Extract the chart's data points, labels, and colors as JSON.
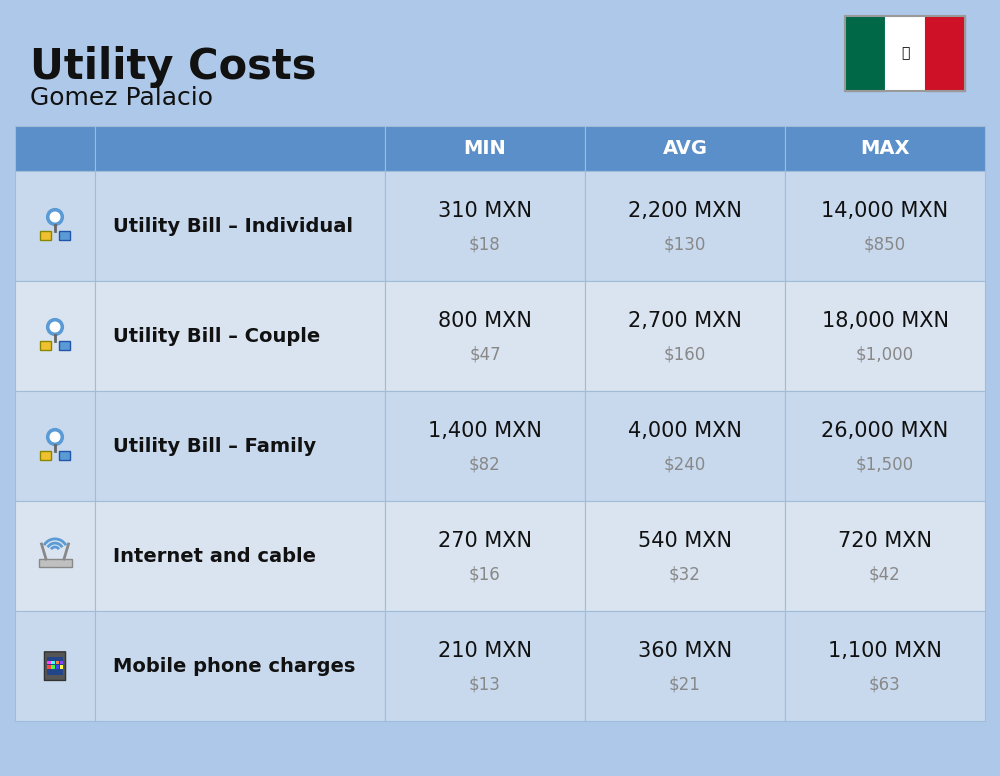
{
  "title": "Utility Costs",
  "subtitle": "Gomez Palacio",
  "background_color": "#adc8e8",
  "header_bg_color": "#5b8fc9",
  "row_bg_color_1": "#c8d9ee",
  "row_bg_color_2": "#dae4f0",
  "header_text_color": "#ffffff",
  "label_text_color": "#111111",
  "value_text_color": "#111111",
  "usd_text_color": "#888888",
  "grid_line_color": "#a0bcd8",
  "col_headers": [
    "MIN",
    "AVG",
    "MAX"
  ],
  "rows": [
    {
      "label": "Utility Bill – Individual",
      "min_mxn": "310 MXN",
      "min_usd": "$18",
      "avg_mxn": "2,200 MXN",
      "avg_usd": "$130",
      "max_mxn": "14,000 MXN",
      "max_usd": "$850"
    },
    {
      "label": "Utility Bill – Couple",
      "min_mxn": "800 MXN",
      "min_usd": "$47",
      "avg_mxn": "2,700 MXN",
      "avg_usd": "$160",
      "max_mxn": "18,000 MXN",
      "max_usd": "$1,000"
    },
    {
      "label": "Utility Bill – Family",
      "min_mxn": "1,400 MXN",
      "min_usd": "$82",
      "avg_mxn": "4,000 MXN",
      "avg_usd": "$240",
      "max_mxn": "26,000 MXN",
      "max_usd": "$1,500"
    },
    {
      "label": "Internet and cable",
      "min_mxn": "270 MXN",
      "min_usd": "$16",
      "avg_mxn": "540 MXN",
      "avg_usd": "$32",
      "max_mxn": "720 MXN",
      "max_usd": "$42"
    },
    {
      "label": "Mobile phone charges",
      "min_mxn": "210 MXN",
      "min_usd": "$13",
      "avg_mxn": "360 MXN",
      "avg_usd": "$21",
      "max_mxn": "1,100 MXN",
      "max_usd": "$63"
    }
  ],
  "title_fontsize": 30,
  "subtitle_fontsize": 18,
  "header_fontsize": 14,
  "label_fontsize": 14,
  "value_fontsize": 15,
  "usd_fontsize": 12,
  "flag_green": "#006847",
  "flag_white": "#ffffff",
  "flag_red": "#ce1126"
}
